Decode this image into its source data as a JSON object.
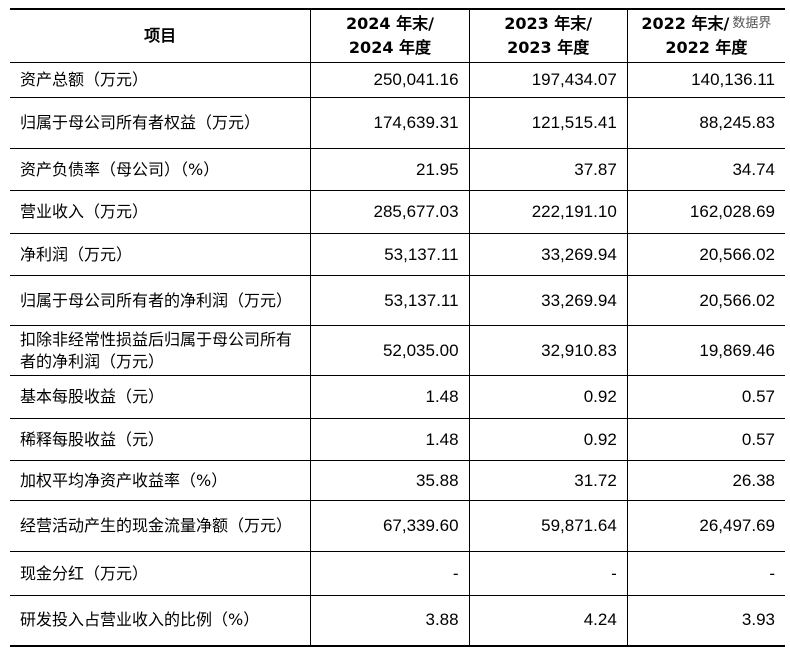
{
  "header": {
    "item": "项目",
    "cols": [
      [
        "2024 年末/",
        "2024 年度"
      ],
      [
        "2023 年末/",
        "2023 年度"
      ],
      [
        "2022 年末/",
        "2022 年度"
      ]
    ]
  },
  "watermark": "数据界",
  "rows": [
    {
      "label": "资产总额（万元）",
      "values": [
        "250,041.16",
        "197,434.07",
        "140,136.11"
      ],
      "h": 35
    },
    {
      "label": "归属于母公司所有者权益（万元）",
      "values": [
        "174,639.31",
        "121,515.41",
        "88,245.83"
      ],
      "h": 51
    },
    {
      "label": "资产负债率（母公司）（%）",
      "values": [
        "21.95",
        "37.87",
        "34.74"
      ],
      "h": 42
    },
    {
      "label": "营业收入（万元）",
      "values": [
        "285,677.03",
        "222,191.10",
        "162,028.69"
      ],
      "h": 43
    },
    {
      "label": "净利润（万元）",
      "values": [
        "53,137.11",
        "33,269.94",
        "20,566.02"
      ],
      "h": 42
    },
    {
      "label": "归属于母公司所有者的净利润（万元）",
      "values": [
        "53,137.11",
        "33,269.94",
        "20,566.02"
      ],
      "h": 50
    },
    {
      "label": "扣除非经常性损益后归属于母公司所有者的净利润（万元）",
      "values": [
        "52,035.00",
        "32,910.83",
        "19,869.46"
      ],
      "h": 50
    },
    {
      "label": "基本每股收益（元）",
      "values": [
        "1.48",
        "0.92",
        "0.57"
      ],
      "h": 43
    },
    {
      "label": "稀释每股收益（元）",
      "values": [
        "1.48",
        "0.92",
        "0.57"
      ],
      "h": 42
    },
    {
      "label": "加权平均净资产收益率（%）",
      "values": [
        "35.88",
        "31.72",
        "26.38"
      ],
      "h": 40
    },
    {
      "label": "经营活动产生的现金流量净额（万元）",
      "values": [
        "67,339.60",
        "59,871.64",
        "26,497.69"
      ],
      "h": 51
    },
    {
      "label": "现金分红（万元）",
      "values": [
        "-",
        "-",
        "-"
      ],
      "h": 44
    },
    {
      "label": "研发投入占营业收入的比例（%）",
      "values": [
        "3.88",
        "4.24",
        "3.93"
      ],
      "h": 50
    }
  ]
}
